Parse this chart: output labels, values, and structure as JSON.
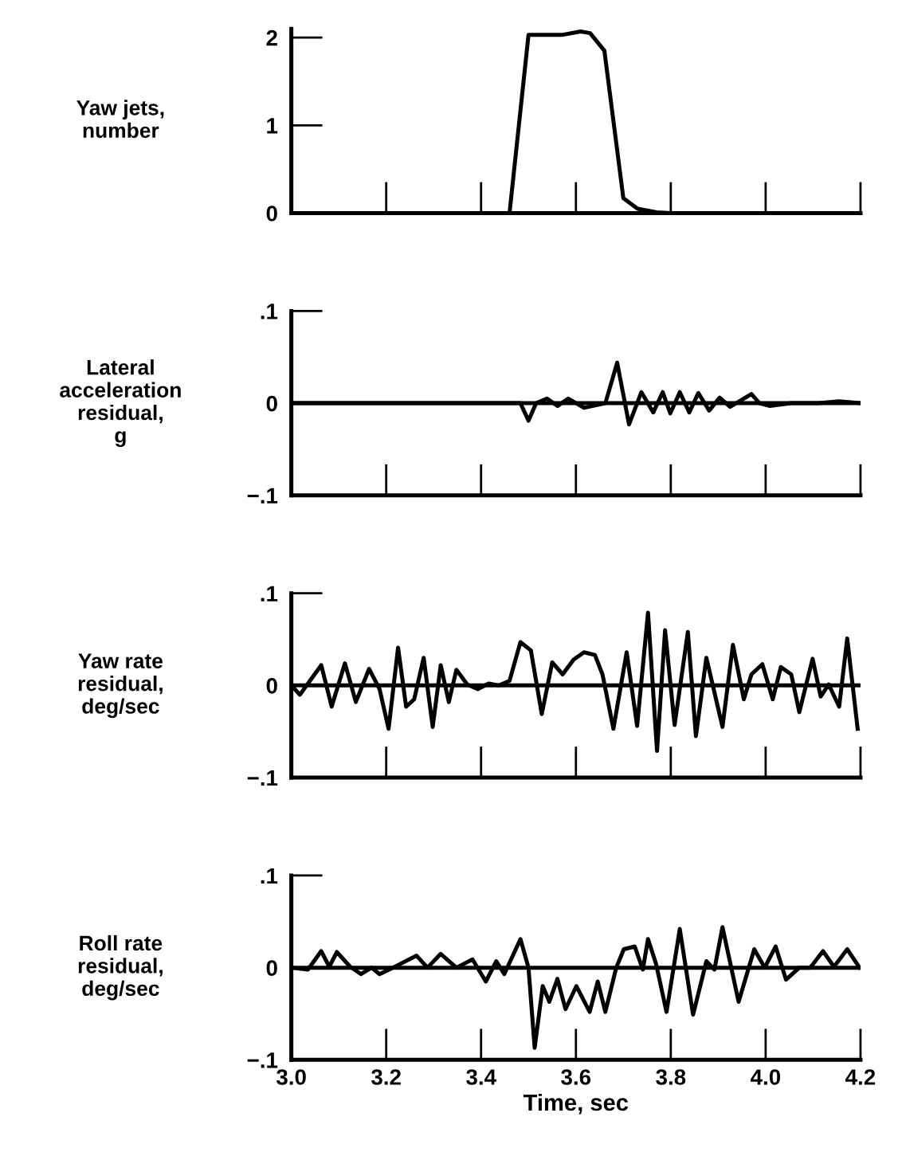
{
  "chart_data": [
    {
      "type": "line",
      "ylabel": "Yaw jets,\nnumber",
      "tick_labels": "y",
      "grid": false,
      "legend": false,
      "series": [
        {
          "color": "#000000",
          "x": [
            3.0,
            3.46,
            3.5,
            3.57,
            3.61,
            3.63,
            3.66,
            3.7,
            3.73,
            3.77,
            3.8,
            4.2
          ],
          "values": [
            0,
            0,
            2.03,
            2.03,
            2.07,
            2.05,
            1.85,
            0.17,
            0.05,
            0.01,
            0,
            0
          ]
        }
      ],
      "xlim": [
        3.0,
        4.2
      ],
      "ylim": [
        0,
        2.1
      ],
      "xticks": [
        {
          "value": 3.0,
          "label": null
        },
        {
          "value": 3.2,
          "label": null
        },
        {
          "value": 3.4,
          "label": null
        },
        {
          "value": 3.6,
          "label": null
        },
        {
          "value": 3.8,
          "label": null
        },
        {
          "value": 4.0,
          "label": null
        },
        {
          "value": 4.2,
          "label": null
        }
      ],
      "yticks": [
        0,
        1,
        2
      ]
    },
    {
      "type": "line",
      "ylabel": "Lateral\nacceleration\nresidual,\ng",
      "tick_labels": "y",
      "grid": false,
      "legend": false,
      "series": [
        {
          "color": "#000000",
          "x": [
            3.0,
            3.483,
            3.5,
            3.516,
            3.539,
            3.561,
            3.584,
            3.617,
            3.662,
            3.687,
            3.712,
            3.738,
            3.763,
            3.783,
            3.799,
            3.819,
            3.839,
            3.858,
            3.881,
            3.903,
            3.925,
            3.97,
            3.987,
            4.009,
            4.054,
            4.11,
            4.155,
            4.2
          ],
          "values": [
            0,
            0,
            -0.019,
            0,
            0.005,
            -0.003,
            0.005,
            -0.005,
            0,
            0.044,
            -0.023,
            0.012,
            -0.01,
            0.012,
            -0.011,
            0.012,
            -0.01,
            0.011,
            -0.008,
            0.006,
            -0.004,
            0.01,
            0,
            -0.003,
            0,
            0,
            0.002,
            0
          ]
        }
      ],
      "ref_lines": [
        {
          "axis": "y",
          "value": 0,
          "color": "#000000"
        }
      ],
      "xlim": [
        3.0,
        4.2
      ],
      "ylim": [
        -0.1,
        0.1
      ],
      "xticks": [
        {
          "value": 3.0,
          "label": null
        },
        {
          "value": 3.2,
          "label": null
        },
        {
          "value": 3.4,
          "label": null
        },
        {
          "value": 3.6,
          "label": null
        },
        {
          "value": 3.8,
          "label": null
        },
        {
          "value": 4.0,
          "label": null
        },
        {
          "value": 4.2,
          "label": null
        }
      ],
      "yticks": [
        {
          "value": -0.1,
          "label": "−.1"
        },
        {
          "value": 0,
          "label": "0"
        },
        {
          "value": 0.1,
          "label": ".1"
        }
      ]
    },
    {
      "type": "line",
      "ylabel": "Yaw rate\nresidual,\ndeg/sec",
      "tick_labels": "y",
      "grid": false,
      "legend": false,
      "series": [
        {
          "color": "#000000",
          "x": [
            3.0,
            3.018,
            3.063,
            3.085,
            3.113,
            3.136,
            3.164,
            3.186,
            3.205,
            3.225,
            3.242,
            3.259,
            3.279,
            3.298,
            3.315,
            3.332,
            3.348,
            3.371,
            3.393,
            3.416,
            3.438,
            3.46,
            3.483,
            3.505,
            3.528,
            3.55,
            3.572,
            3.595,
            3.617,
            3.64,
            3.656,
            3.679,
            3.707,
            3.729,
            3.752,
            3.771,
            3.788,
            3.808,
            3.836,
            3.853,
            3.875,
            3.909,
            3.931,
            3.954,
            3.97,
            3.993,
            4.015,
            4.032,
            4.054,
            4.071,
            4.099,
            4.116,
            4.133,
            4.155,
            4.172,
            4.194
          ],
          "values": [
            0,
            -0.01,
            0.022,
            -0.023,
            0.024,
            -0.018,
            0.018,
            -0.004,
            -0.047,
            0.041,
            -0.023,
            -0.015,
            0.03,
            -0.045,
            0.022,
            -0.018,
            0.017,
            0.001,
            -0.004,
            0.002,
            0,
            0.005,
            0.047,
            0.038,
            -0.031,
            0.025,
            0.012,
            0.028,
            0.036,
            0.033,
            0.012,
            -0.047,
            0.036,
            -0.044,
            0.079,
            -0.071,
            0.06,
            -0.043,
            0.058,
            -0.055,
            0.03,
            -0.045,
            0.044,
            -0.015,
            0.012,
            0.023,
            -0.015,
            0.02,
            0.012,
            -0.029,
            0.029,
            -0.012,
            0.001,
            -0.023,
            0.051,
            -0.047
          ]
        }
      ],
      "ref_lines": [
        {
          "axis": "y",
          "value": 0,
          "color": "#000000"
        }
      ],
      "xlim": [
        3.0,
        4.2
      ],
      "ylim": [
        -0.1,
        0.1
      ],
      "xticks": [
        {
          "value": 3.0,
          "label": null
        },
        {
          "value": 3.2,
          "label": null
        },
        {
          "value": 3.4,
          "label": null
        },
        {
          "value": 3.6,
          "label": null
        },
        {
          "value": 3.8,
          "label": null
        },
        {
          "value": 4.0,
          "label": null
        },
        {
          "value": 4.2,
          "label": null
        }
      ],
      "yticks": [
        {
          "value": -0.1,
          "label": "−.1"
        },
        {
          "value": 0,
          "label": "0"
        },
        {
          "value": 0.1,
          "label": ".1"
        }
      ]
    },
    {
      "type": "line",
      "ylabel": "Roll rate\nresidual,\ndeg/sec",
      "xlabel": "Time, sec",
      "grid": false,
      "legend": false,
      "series": [
        {
          "color": "#000000",
          "x": [
            3.0,
            3.035,
            3.063,
            3.08,
            3.096,
            3.124,
            3.147,
            3.169,
            3.186,
            3.214,
            3.264,
            3.287,
            3.315,
            3.348,
            3.382,
            3.41,
            3.432,
            3.449,
            3.483,
            3.5,
            3.513,
            3.53,
            3.544,
            3.561,
            3.578,
            3.601,
            3.629,
            3.646,
            3.662,
            3.685,
            3.701,
            3.724,
            3.741,
            3.752,
            3.769,
            3.791,
            3.819,
            3.847,
            3.875,
            3.892,
            3.909,
            3.943,
            3.976,
            3.998,
            4.021,
            4.043,
            4.071,
            4.094,
            4.121,
            4.144,
            4.172,
            4.198
          ],
          "values": [
            0,
            -0.002,
            0.018,
            0.001,
            0.017,
            0.001,
            -0.007,
            0,
            -0.007,
            0,
            0.013,
            0,
            0.015,
            0,
            0.009,
            -0.015,
            0.007,
            -0.007,
            0.031,
            0,
            -0.087,
            -0.02,
            -0.037,
            -0.012,
            -0.045,
            -0.02,
            -0.048,
            -0.015,
            -0.048,
            0,
            0.02,
            0.023,
            -0.002,
            0.031,
            0.004,
            -0.048,
            0.042,
            -0.051,
            0.007,
            -0.002,
            0.044,
            -0.037,
            0.02,
            0,
            0.023,
            -0.013,
            0,
            0,
            0.018,
            0.001,
            0.02,
            0
          ]
        }
      ],
      "ref_lines": [
        {
          "axis": "y",
          "value": 0,
          "color": "#000000"
        }
      ],
      "xlim": [
        3.0,
        4.2
      ],
      "ylim": [
        -0.1,
        0.1
      ],
      "xticks": [
        {
          "value": 3.0,
          "label": "3.0"
        },
        {
          "value": 3.2,
          "label": "3.2"
        },
        {
          "value": 3.4,
          "label": "3.4"
        },
        {
          "value": 3.6,
          "label": "3.6"
        },
        {
          "value": 3.8,
          "label": "3.8"
        },
        {
          "value": 4.0,
          "label": "4.0"
        },
        {
          "value": 4.2,
          "label": "4.2"
        }
      ],
      "yticks": [
        {
          "value": -0.1,
          "label": "−.1"
        },
        {
          "value": 0,
          "label": "0"
        },
        {
          "value": 0.1,
          "label": ".1"
        }
      ]
    }
  ]
}
